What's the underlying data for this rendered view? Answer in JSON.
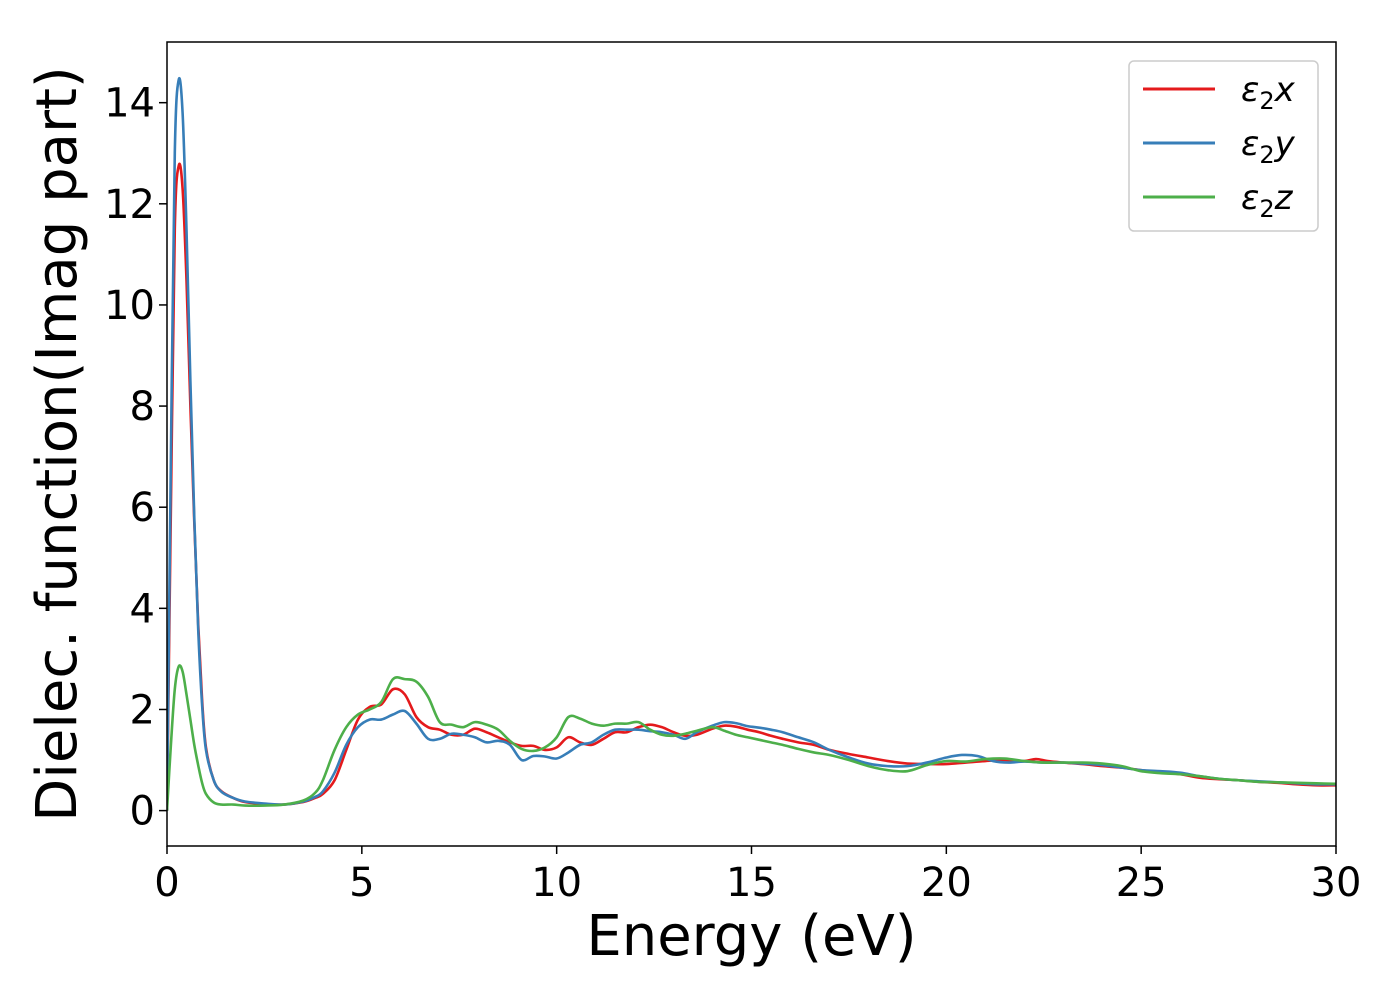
{
  "chart_data": {
    "type": "line",
    "title": "",
    "xlabel": "Energy (eV)",
    "ylabel": "Dielec. function(Imag part)",
    "xlim": [
      0,
      30
    ],
    "ylim": [
      -0.7,
      15.2
    ],
    "xticks": [
      0,
      5,
      10,
      15,
      20,
      25,
      30
    ],
    "yticks": [
      0,
      2,
      4,
      6,
      8,
      10,
      12,
      14
    ],
    "grid": false,
    "legend_position": "top-right",
    "series": [
      {
        "name": "x",
        "legend": {
          "base": "ε",
          "sub": "2",
          "suffix": "x"
        },
        "color": "#e41a1c",
        "points": [
          [
            0,
            0
          ],
          [
            0.1,
            6.0
          ],
          [
            0.2,
            11.5
          ],
          [
            0.3,
            12.75
          ],
          [
            0.4,
            12.3
          ],
          [
            0.5,
            10.5
          ],
          [
            0.6,
            8.0
          ],
          [
            0.7,
            5.7
          ],
          [
            0.8,
            3.7
          ],
          [
            0.9,
            2.2
          ],
          [
            1.0,
            1.25
          ],
          [
            1.2,
            0.6
          ],
          [
            1.4,
            0.38
          ],
          [
            1.7,
            0.25
          ],
          [
            2.0,
            0.17
          ],
          [
            2.5,
            0.13
          ],
          [
            3.0,
            0.12
          ],
          [
            3.5,
            0.17
          ],
          [
            3.8,
            0.25
          ],
          [
            4.0,
            0.33
          ],
          [
            4.3,
            0.6
          ],
          [
            4.6,
            1.2
          ],
          [
            4.9,
            1.8
          ],
          [
            5.2,
            2.05
          ],
          [
            5.5,
            2.1
          ],
          [
            5.8,
            2.4
          ],
          [
            6.1,
            2.3
          ],
          [
            6.4,
            1.85
          ],
          [
            6.7,
            1.65
          ],
          [
            7.0,
            1.6
          ],
          [
            7.3,
            1.5
          ],
          [
            7.6,
            1.5
          ],
          [
            7.9,
            1.62
          ],
          [
            8.2,
            1.55
          ],
          [
            8.5,
            1.45
          ],
          [
            8.8,
            1.35
          ],
          [
            9.1,
            1.28
          ],
          [
            9.4,
            1.28
          ],
          [
            9.7,
            1.2
          ],
          [
            10.0,
            1.25
          ],
          [
            10.3,
            1.45
          ],
          [
            10.6,
            1.35
          ],
          [
            10.9,
            1.3
          ],
          [
            11.2,
            1.42
          ],
          [
            11.5,
            1.55
          ],
          [
            11.8,
            1.55
          ],
          [
            12.1,
            1.65
          ],
          [
            12.4,
            1.7
          ],
          [
            12.7,
            1.65
          ],
          [
            13.0,
            1.55
          ],
          [
            13.3,
            1.48
          ],
          [
            13.6,
            1.5
          ],
          [
            14.0,
            1.62
          ],
          [
            14.3,
            1.68
          ],
          [
            14.6,
            1.66
          ],
          [
            14.9,
            1.6
          ],
          [
            15.2,
            1.55
          ],
          [
            15.5,
            1.48
          ],
          [
            15.8,
            1.42
          ],
          [
            16.2,
            1.35
          ],
          [
            16.6,
            1.3
          ],
          [
            17.0,
            1.2
          ],
          [
            17.5,
            1.12
          ],
          [
            18.0,
            1.05
          ],
          [
            18.5,
            0.98
          ],
          [
            19.0,
            0.93
          ],
          [
            19.5,
            0.92
          ],
          [
            20.0,
            0.92
          ],
          [
            20.5,
            0.95
          ],
          [
            21.0,
            0.98
          ],
          [
            21.5,
            1.0
          ],
          [
            22.0,
            0.98
          ],
          [
            22.3,
            1.02
          ],
          [
            22.6,
            0.98
          ],
          [
            23.0,
            0.95
          ],
          [
            23.5,
            0.92
          ],
          [
            24.0,
            0.88
          ],
          [
            24.5,
            0.85
          ],
          [
            25.0,
            0.8
          ],
          [
            25.5,
            0.75
          ],
          [
            26.0,
            0.72
          ],
          [
            26.5,
            0.65
          ],
          [
            27.0,
            0.62
          ],
          [
            27.5,
            0.6
          ],
          [
            28.0,
            0.57
          ],
          [
            28.5,
            0.55
          ],
          [
            29.0,
            0.52
          ],
          [
            29.5,
            0.5
          ],
          [
            30.0,
            0.5
          ]
        ]
      },
      {
        "name": "y",
        "legend": {
          "base": "ε",
          "sub": "2",
          "suffix": "y"
        },
        "color": "#377eb8",
        "points": [
          [
            0,
            0
          ],
          [
            0.1,
            7.0
          ],
          [
            0.2,
            13.0
          ],
          [
            0.3,
            14.45
          ],
          [
            0.4,
            13.8
          ],
          [
            0.5,
            11.5
          ],
          [
            0.6,
            8.5
          ],
          [
            0.7,
            5.8
          ],
          [
            0.8,
            3.6
          ],
          [
            0.9,
            2.1
          ],
          [
            1.0,
            1.2
          ],
          [
            1.2,
            0.6
          ],
          [
            1.4,
            0.37
          ],
          [
            1.7,
            0.25
          ],
          [
            2.0,
            0.18
          ],
          [
            2.5,
            0.14
          ],
          [
            3.0,
            0.12
          ],
          [
            3.5,
            0.18
          ],
          [
            3.8,
            0.27
          ],
          [
            4.0,
            0.38
          ],
          [
            4.3,
            0.75
          ],
          [
            4.6,
            1.3
          ],
          [
            4.9,
            1.65
          ],
          [
            5.2,
            1.8
          ],
          [
            5.5,
            1.8
          ],
          [
            5.8,
            1.9
          ],
          [
            6.1,
            1.97
          ],
          [
            6.4,
            1.72
          ],
          [
            6.7,
            1.42
          ],
          [
            7.0,
            1.42
          ],
          [
            7.3,
            1.52
          ],
          [
            7.6,
            1.5
          ],
          [
            7.9,
            1.45
          ],
          [
            8.2,
            1.35
          ],
          [
            8.5,
            1.38
          ],
          [
            8.8,
            1.3
          ],
          [
            9.1,
            1.0
          ],
          [
            9.4,
            1.08
          ],
          [
            9.7,
            1.07
          ],
          [
            10.0,
            1.03
          ],
          [
            10.3,
            1.15
          ],
          [
            10.6,
            1.3
          ],
          [
            10.9,
            1.35
          ],
          [
            11.2,
            1.5
          ],
          [
            11.5,
            1.6
          ],
          [
            11.8,
            1.6
          ],
          [
            12.1,
            1.6
          ],
          [
            12.4,
            1.57
          ],
          [
            12.7,
            1.55
          ],
          [
            13.0,
            1.5
          ],
          [
            13.3,
            1.42
          ],
          [
            13.6,
            1.55
          ],
          [
            14.0,
            1.68
          ],
          [
            14.3,
            1.75
          ],
          [
            14.6,
            1.73
          ],
          [
            14.9,
            1.67
          ],
          [
            15.2,
            1.64
          ],
          [
            15.5,
            1.6
          ],
          [
            15.8,
            1.55
          ],
          [
            16.2,
            1.45
          ],
          [
            16.6,
            1.35
          ],
          [
            17.0,
            1.2
          ],
          [
            17.5,
            1.05
          ],
          [
            18.0,
            0.93
          ],
          [
            18.5,
            0.88
          ],
          [
            19.0,
            0.88
          ],
          [
            19.5,
            0.95
          ],
          [
            20.0,
            1.05
          ],
          [
            20.4,
            1.1
          ],
          [
            20.8,
            1.08
          ],
          [
            21.2,
            0.98
          ],
          [
            21.6,
            0.95
          ],
          [
            22.0,
            0.97
          ],
          [
            22.5,
            0.95
          ],
          [
            23.0,
            0.95
          ],
          [
            23.5,
            0.93
          ],
          [
            24.0,
            0.9
          ],
          [
            24.5,
            0.85
          ],
          [
            25.0,
            0.8
          ],
          [
            25.5,
            0.78
          ],
          [
            26.0,
            0.75
          ],
          [
            26.5,
            0.68
          ],
          [
            27.0,
            0.63
          ],
          [
            27.5,
            0.6
          ],
          [
            28.0,
            0.58
          ],
          [
            28.5,
            0.56
          ],
          [
            29.0,
            0.54
          ],
          [
            29.5,
            0.52
          ],
          [
            30.0,
            0.52
          ]
        ]
      },
      {
        "name": "z",
        "legend": {
          "base": "ε",
          "sub": "2",
          "suffix": "z"
        },
        "color": "#4daf4a",
        "points": [
          [
            0,
            0
          ],
          [
            0.1,
            1.3
          ],
          [
            0.2,
            2.4
          ],
          [
            0.3,
            2.85
          ],
          [
            0.4,
            2.75
          ],
          [
            0.5,
            2.3
          ],
          [
            0.6,
            1.8
          ],
          [
            0.7,
            1.3
          ],
          [
            0.8,
            0.9
          ],
          [
            0.9,
            0.55
          ],
          [
            1.0,
            0.33
          ],
          [
            1.2,
            0.16
          ],
          [
            1.4,
            0.12
          ],
          [
            1.7,
            0.12
          ],
          [
            2.0,
            0.1
          ],
          [
            2.5,
            0.1
          ],
          [
            3.0,
            0.12
          ],
          [
            3.5,
            0.2
          ],
          [
            3.8,
            0.35
          ],
          [
            4.0,
            0.6
          ],
          [
            4.3,
            1.2
          ],
          [
            4.6,
            1.65
          ],
          [
            4.9,
            1.9
          ],
          [
            5.2,
            2.0
          ],
          [
            5.5,
            2.15
          ],
          [
            5.8,
            2.6
          ],
          [
            6.1,
            2.6
          ],
          [
            6.4,
            2.55
          ],
          [
            6.7,
            2.25
          ],
          [
            7.0,
            1.75
          ],
          [
            7.3,
            1.7
          ],
          [
            7.6,
            1.65
          ],
          [
            7.9,
            1.75
          ],
          [
            8.2,
            1.7
          ],
          [
            8.5,
            1.6
          ],
          [
            8.8,
            1.38
          ],
          [
            9.1,
            1.22
          ],
          [
            9.4,
            1.18
          ],
          [
            9.7,
            1.25
          ],
          [
            10.0,
            1.45
          ],
          [
            10.3,
            1.85
          ],
          [
            10.6,
            1.82
          ],
          [
            10.9,
            1.72
          ],
          [
            11.2,
            1.68
          ],
          [
            11.5,
            1.72
          ],
          [
            11.8,
            1.72
          ],
          [
            12.1,
            1.75
          ],
          [
            12.4,
            1.6
          ],
          [
            12.7,
            1.5
          ],
          [
            13.0,
            1.48
          ],
          [
            13.3,
            1.52
          ],
          [
            13.6,
            1.58
          ],
          [
            14.0,
            1.65
          ],
          [
            14.3,
            1.58
          ],
          [
            14.6,
            1.5
          ],
          [
            14.9,
            1.45
          ],
          [
            15.2,
            1.4
          ],
          [
            15.5,
            1.35
          ],
          [
            15.8,
            1.3
          ],
          [
            16.2,
            1.22
          ],
          [
            16.6,
            1.15
          ],
          [
            17.0,
            1.1
          ],
          [
            17.5,
            1.0
          ],
          [
            18.0,
            0.88
          ],
          [
            18.5,
            0.8
          ],
          [
            19.0,
            0.78
          ],
          [
            19.5,
            0.9
          ],
          [
            20.0,
            0.98
          ],
          [
            20.5,
            0.97
          ],
          [
            21.0,
            1.02
          ],
          [
            21.5,
            1.03
          ],
          [
            22.0,
            0.98
          ],
          [
            22.5,
            0.95
          ],
          [
            23.0,
            0.95
          ],
          [
            23.5,
            0.95
          ],
          [
            24.0,
            0.93
          ],
          [
            24.5,
            0.88
          ],
          [
            25.0,
            0.78
          ],
          [
            25.5,
            0.74
          ],
          [
            26.0,
            0.72
          ],
          [
            26.5,
            0.68
          ],
          [
            27.0,
            0.63
          ],
          [
            27.5,
            0.6
          ],
          [
            28.0,
            0.57
          ],
          [
            28.5,
            0.56
          ],
          [
            29.0,
            0.55
          ],
          [
            29.5,
            0.54
          ],
          [
            30.0,
            0.53
          ]
        ]
      }
    ]
  }
}
